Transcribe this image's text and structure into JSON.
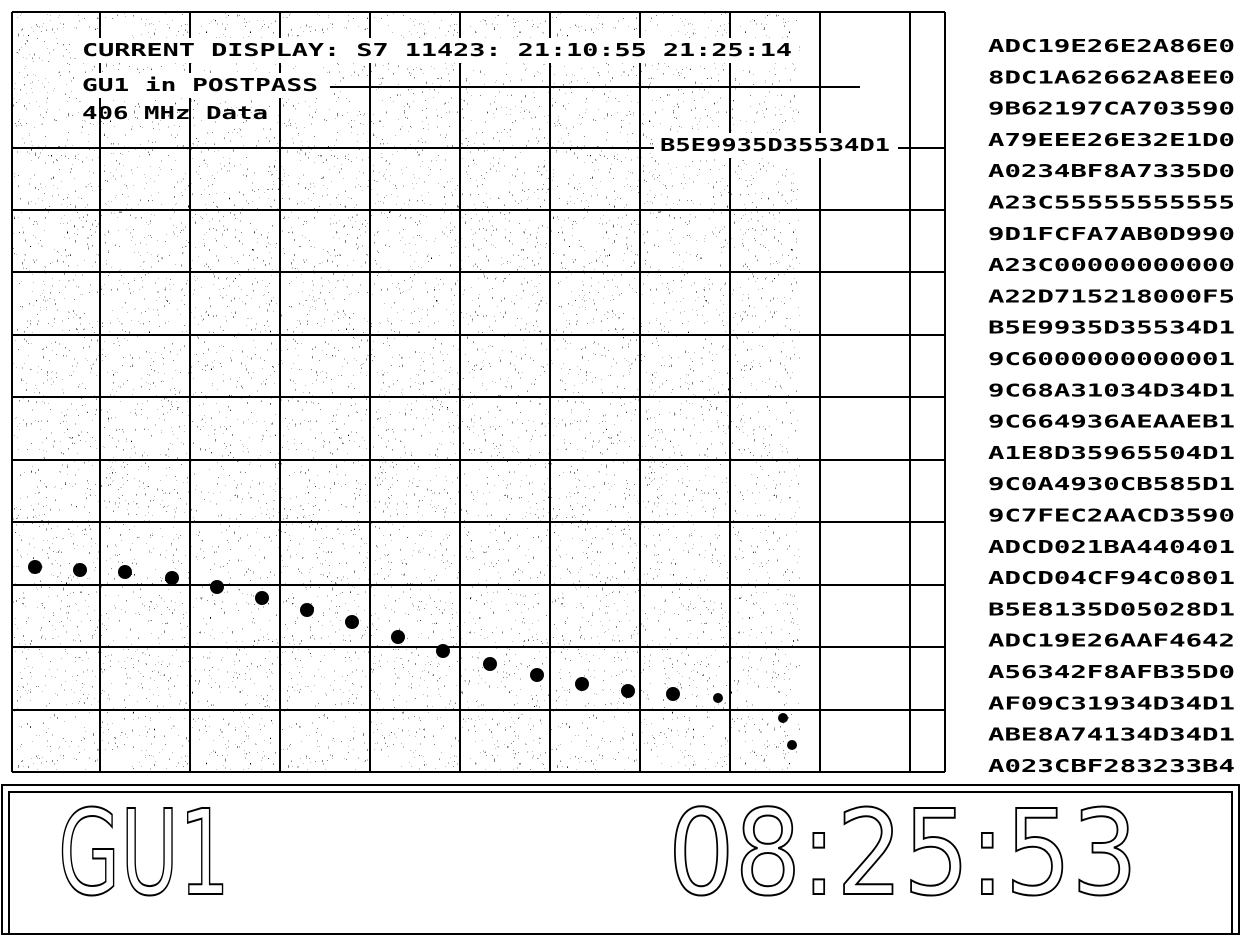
{
  "plot": {
    "header": "CURRENT DISPLAY: S7 11423: 21:10:55 21:25:14",
    "status": "GU1 in POSTPASS",
    "band": "406 MHz Data",
    "marker_label": "B5E9935D35534D1"
  },
  "messages": [
    "ADC19E26E2A86E0",
    "8DC1A62662A8EE0",
    "9B62197CA703590",
    "A79EEE26E32E1D0",
    "A0234BF8A7335D0",
    "A23C55555555555",
    "9D1FCFA7AB0D990",
    "A23C00000000000",
    "A22D715218000F5",
    "B5E9935D35534D1",
    "9C6000000000001",
    "9C68A31034D34D1",
    "9C664936AEAAEB1",
    "A1E8D35965504D1",
    "9C0A4930CB585D1",
    "9C7FEC2AACD3590",
    "ADCD021BA440401",
    "ADCD04CF94C0801",
    "B5E8135D05028D1",
    "ADC19E26AAF4642",
    "A56342F8AFB35D0",
    "AF09C31934D34D1",
    "ABE8A74134D34D1",
    "A023CBF283233B4"
  ],
  "footer": {
    "station": "GU1",
    "clock": "08:25:53"
  }
}
